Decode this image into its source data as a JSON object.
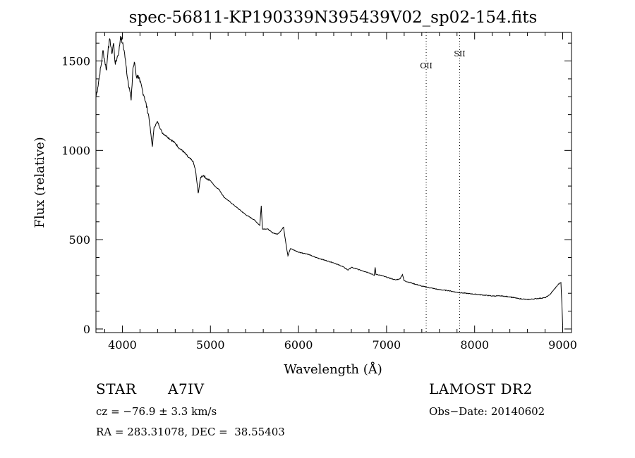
{
  "chart_data": {
    "type": "line",
    "title": "spec-56811-KP190339N395439V02_sp02-154.fits",
    "xlabel": "Wavelength (Å)",
    "ylabel": "Flux (relative)",
    "xlim": [
      3700,
      9100
    ],
    "ylim": [
      -20,
      1660
    ],
    "xticks": [
      4000,
      5000,
      6000,
      7000,
      8000,
      9000
    ],
    "xtick_labels": [
      "4000",
      "5000",
      "6000",
      "7000",
      "8000",
      "9000"
    ],
    "yticks": [
      0,
      500,
      1000,
      1500
    ],
    "ytick_labels": [
      "0",
      "500",
      "1000",
      "1500"
    ],
    "grid": false,
    "series": [
      {
        "x": [
          3700,
          3720,
          3740,
          3760,
          3780,
          3800,
          3820,
          3840,
          3860,
          3880,
          3900,
          3920,
          3940,
          3960,
          3980,
          4000,
          4020,
          4040,
          4060,
          4080,
          4100,
          4120,
          4140,
          4160,
          4180,
          4200,
          4250,
          4300,
          4340,
          4360,
          4400,
          4450,
          4500,
          4550,
          4600,
          4650,
          4700,
          4750,
          4800,
          4830,
          4861,
          4890,
          4920,
          4960,
          5000,
          5050,
          5100,
          5150,
          5200,
          5250,
          5300,
          5400,
          5500,
          5560,
          5577,
          5590,
          5650,
          5700,
          5760,
          5800,
          5830,
          5860,
          5880,
          5893,
          5910,
          6000,
          6100,
          6200,
          6300,
          6400,
          6500,
          6563,
          6600,
          6700,
          6800,
          6860,
          6870,
          6880,
          6900,
          7000,
          7100,
          7150,
          7180,
          7200,
          7300,
          7400,
          7500,
          7600,
          7700,
          7800,
          7900,
          8000,
          8100,
          8200,
          8300,
          8400,
          8500,
          8600,
          8700,
          8800,
          8850,
          8900,
          8950,
          8980,
          8990,
          9000
        ],
        "y": [
          1300,
          1350,
          1420,
          1480,
          1560,
          1500,
          1450,
          1580,
          1620,
          1540,
          1600,
          1480,
          1520,
          1550,
          1640,
          1600,
          1560,
          1480,
          1400,
          1350,
          1280,
          1460,
          1490,
          1410,
          1420,
          1380,
          1300,
          1190,
          1020,
          1130,
          1160,
          1100,
          1080,
          1060,
          1040,
          1010,
          990,
          960,
          940,
          890,
          760,
          850,
          860,
          840,
          830,
          800,
          780,
          740,
          720,
          700,
          680,
          640,
          610,
          580,
          690,
          560,
          560,
          540,
          530,
          550,
          570,
          470,
          410,
          430,
          450,
          430,
          420,
          400,
          385,
          370,
          350,
          330,
          345,
          330,
          315,
          300,
          345,
          305,
          305,
          290,
          275,
          280,
          305,
          270,
          255,
          240,
          230,
          220,
          215,
          205,
          200,
          195,
          190,
          185,
          185,
          180,
          170,
          165,
          170,
          175,
          190,
          220,
          250,
          260,
          150,
          20
        ]
      }
    ],
    "annotations": [
      {
        "x": 7450,
        "label": "OII"
      },
      {
        "x": 7830,
        "label": "SII"
      }
    ]
  },
  "info": {
    "object_type": "STAR",
    "subclass": "A7IV",
    "survey": "LAMOST DR2",
    "cz": "cz = −76.9 ± 3.3 km/s",
    "obs_date": "Obs−Date: 20140602",
    "coords": "RA = 283.31078, DEC =  38.55403"
  }
}
